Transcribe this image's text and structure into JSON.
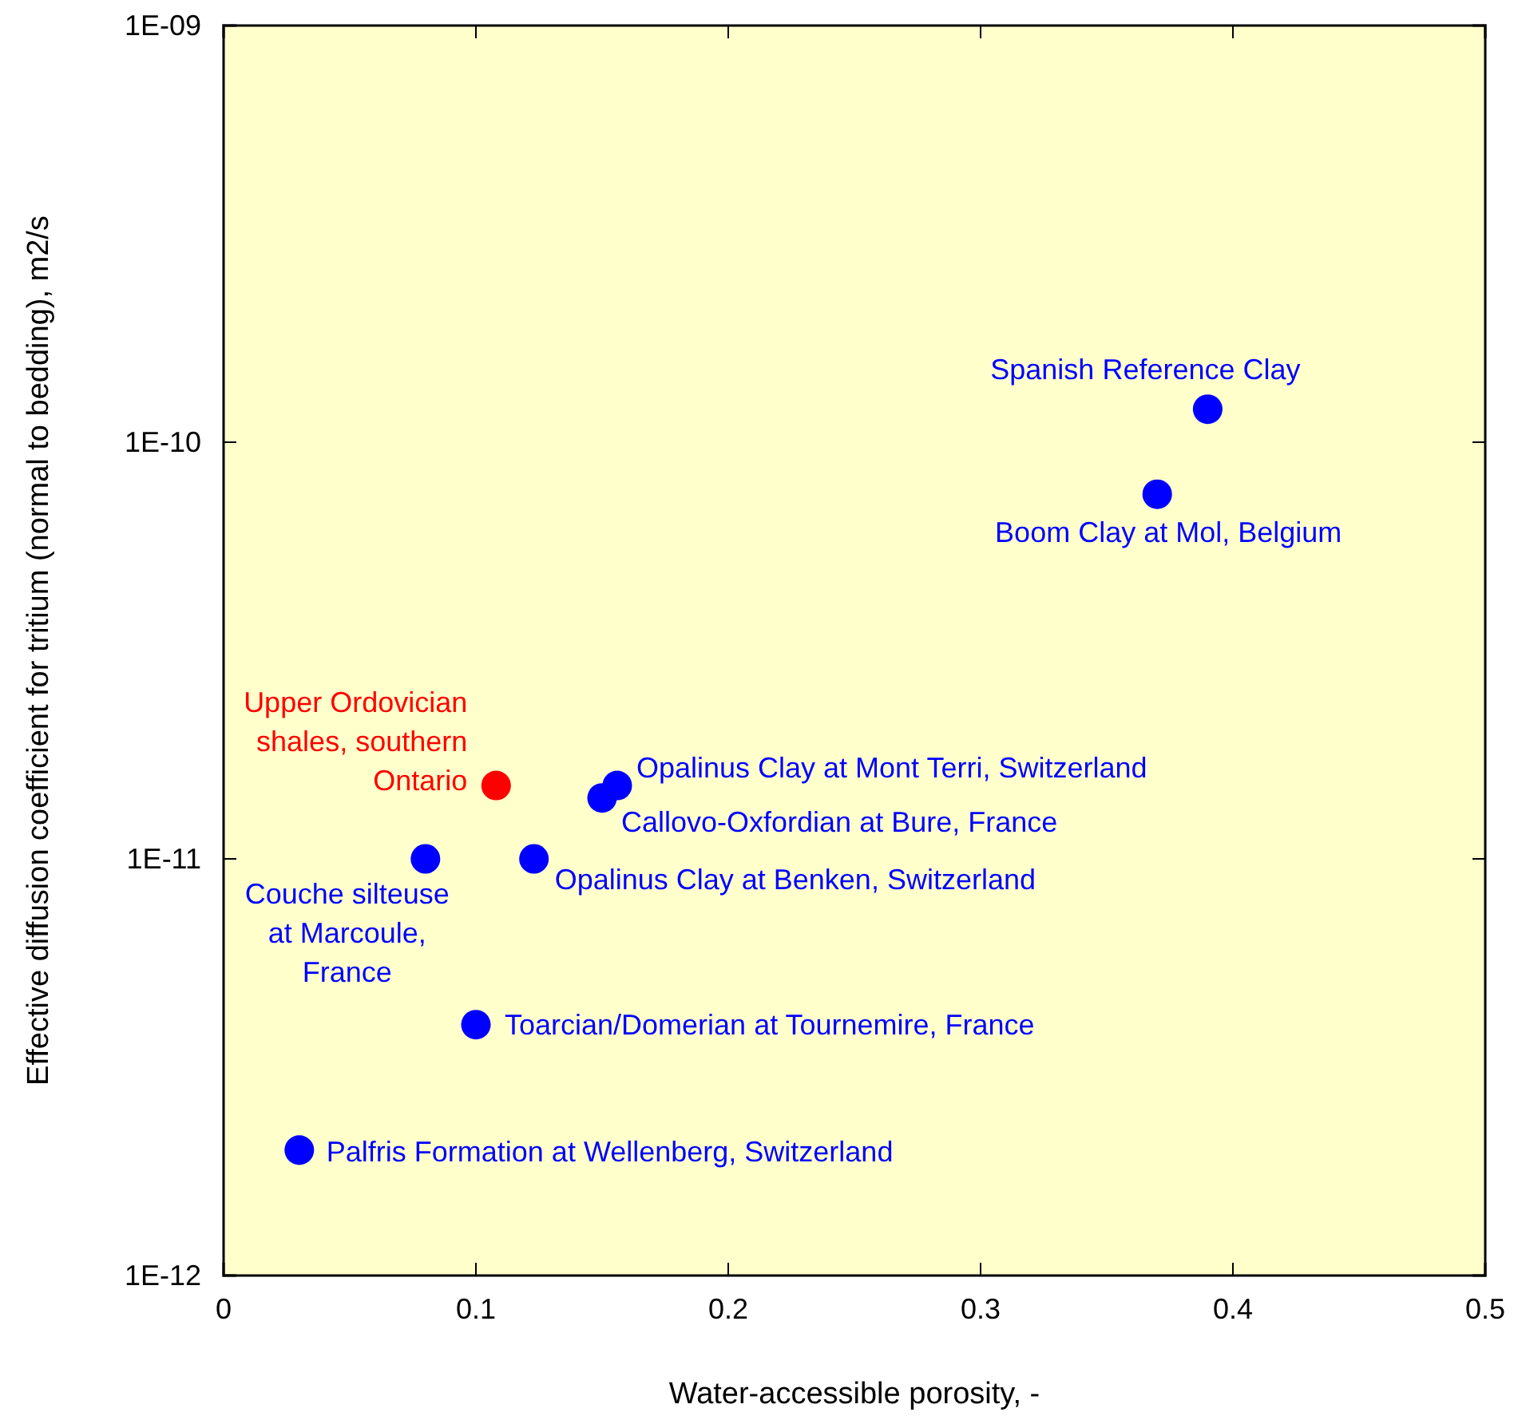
{
  "chart_data": {
    "type": "scatter",
    "xlabel": "Water-accessible porosity, -",
    "ylabel": "Effective diffusion coefficient for tritium (normal to bedding), m2/s",
    "x": [
      0.39,
      0.37,
      0.108,
      0.156,
      0.15,
      0.08,
      0.123,
      0.1,
      0.03
    ],
    "values": [
      1.2e-10,
      7.5e-11,
      1.5e-11,
      1.5e-11,
      1.4e-11,
      1e-11,
      1e-11,
      4e-12,
      2e-12
    ],
    "colors": [
      "#0000ff",
      "#0000ff",
      "#ff0000",
      "#0000ff",
      "#0000ff",
      "#0000ff",
      "#0000ff",
      "#0000ff",
      "#0000ff"
    ],
    "marker": "circle",
    "log": "y",
    "grid": false,
    "xlim": [
      0,
      0.5
    ],
    "xticks": [
      0,
      0.1,
      0.2,
      0.3,
      0.4,
      0.5
    ],
    "ylim": [
      1e-12,
      1e-09
    ],
    "yticks": [
      {
        "value": 1e-12,
        "label": "1E-12"
      },
      {
        "value": 1e-11,
        "label": "1E-11"
      },
      {
        "value": 1e-10,
        "label": "1E-10"
      },
      {
        "value": 1e-09,
        "label": "1E-09"
      }
    ],
    "annotations": [
      {
        "text": "Spanish Reference Clay",
        "x": 0.39,
        "y": 1.2e-10
      },
      {
        "text": "Boom Clay at Mol, Belgium",
        "x": 0.37,
        "y": 7.5e-11
      },
      {
        "text": "Upper Ordovician\nshales, southern\nOntario",
        "x": 0.108,
        "y": 1.5e-11
      },
      {
        "text": "Opalinus Clay at Mont Terri, Switzerland",
        "x": 0.156,
        "y": 1.5e-11
      },
      {
        "text": "Callovo-Oxfordian at Bure, France",
        "x": 0.15,
        "y": 1.4e-11
      },
      {
        "text": "Couche silteuse\nat Marcoule,\nFrance",
        "x": 0.08,
        "y": 1e-11
      },
      {
        "text": "Opalinus Clay at Benken, Switzerland",
        "x": 0.123,
        "y": 1e-11
      },
      {
        "text": "Toarcian/Domerian at Tournemire, France",
        "x": 0.1,
        "y": 4e-12
      },
      {
        "text": "Palfris Formation at Wellenberg, Switzerland",
        "x": 0.03,
        "y": 2e-12
      }
    ]
  }
}
